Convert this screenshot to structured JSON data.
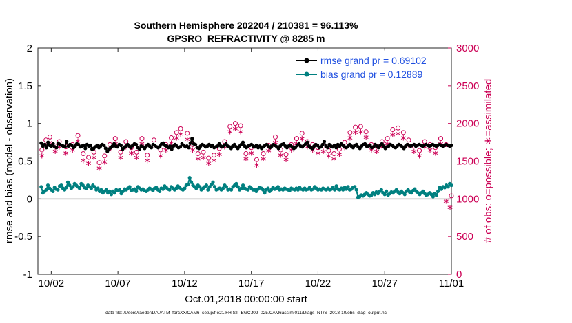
{
  "chart_data": {
    "type": "line",
    "title_line1": "Southern Hemisphere 202204 / 210381 = 96.113%",
    "title_line2": "GPSRO_REFRACTIVITY @ 8285 m",
    "xlabel": "Oct.01,2018 00:00:00 start",
    "ylabel_left": "rmse and bias (model - observation)",
    "ylabel_right": "# of obs: o=possible; ∗=assimilated",
    "x_tick_labels": [
      "10/02",
      "10/07",
      "10/12",
      "10/17",
      "10/22",
      "10/27",
      "11/01"
    ],
    "x_tick_days": [
      1,
      6,
      11,
      16,
      21,
      26,
      31
    ],
    "xlim_days": [
      0,
      31
    ],
    "ylim_left": [
      -1,
      2
    ],
    "y_ticks_left": [
      "-1",
      "-0.5",
      "0",
      "0.5",
      "1",
      "1.5",
      "2"
    ],
    "ylim_right": [
      0,
      3000
    ],
    "y_ticks_right": [
      "0",
      "500",
      "1000",
      "1500",
      "2000",
      "2500",
      "3000"
    ],
    "legend_position": "top-right",
    "footnote": "data file: /Users/raeder/DAI/ATM_forcXX/CAM6_setup/f.e21.FHIST_BGC.f09_025.CAM6assim.011/Diags_NTrS_2018-10/obs_diag_output.nc",
    "colors": {
      "rmse": "#000000",
      "bias": "#008080",
      "obs": "#cc0055",
      "zero_line": "#aaaaaa"
    },
    "series": [
      {
        "name": "rmse grand pr = 0.69102",
        "key": "rmse",
        "time_range": [
          0.25,
          31
        ],
        "values": [
          0.74,
          0.7,
          0.72,
          0.68,
          0.75,
          0.71,
          0.7,
          0.73,
          0.69,
          0.68,
          0.74,
          0.72,
          0.71,
          0.7,
          0.69,
          0.76,
          0.7,
          0.72,
          0.71,
          0.68,
          0.7,
          0.73,
          0.72,
          0.69,
          0.7,
          0.71,
          0.67,
          0.72,
          0.7,
          0.71,
          0.66,
          0.67,
          0.69,
          0.71,
          0.68,
          0.7,
          0.72,
          0.71,
          0.67,
          0.63,
          0.66,
          0.68,
          0.7,
          0.73,
          0.7,
          0.69,
          0.72,
          0.71,
          0.66,
          0.68,
          0.7,
          0.72,
          0.7,
          0.68,
          0.71,
          0.73,
          0.72,
          0.68,
          0.66,
          0.7,
          0.69,
          0.67,
          0.7,
          0.72,
          0.7,
          0.68,
          0.72,
          0.71,
          0.69,
          0.68,
          0.7,
          0.73,
          0.74,
          0.71,
          0.7,
          0.68,
          0.7,
          0.66,
          0.7,
          0.72,
          0.7,
          0.68,
          0.69,
          0.73,
          0.71,
          0.69,
          0.7,
          0.68,
          0.74,
          0.8,
          0.73,
          0.72,
          0.68,
          0.67,
          0.7,
          0.72,
          0.71,
          0.69,
          0.7,
          0.72,
          0.7,
          0.71,
          0.68,
          0.69,
          0.7,
          0.73,
          0.7,
          0.69,
          0.71,
          0.73,
          0.7,
          0.69,
          0.67,
          0.7,
          0.72,
          0.69,
          0.67,
          0.7,
          0.72,
          0.75,
          0.7,
          0.68,
          0.7,
          0.71,
          0.72,
          0.7,
          0.69,
          0.71,
          0.68,
          0.7,
          0.67,
          0.69,
          0.71,
          0.72,
          0.7,
          0.68,
          0.7,
          0.72,
          0.71,
          0.69,
          0.67,
          0.7,
          0.72,
          0.73,
          0.7,
          0.68,
          0.7,
          0.71,
          0.69,
          0.67,
          0.68,
          0.71,
          0.73,
          0.7,
          0.69,
          0.71,
          0.73,
          0.75,
          0.7,
          0.68,
          0.67,
          0.7,
          0.72,
          0.71,
          0.68,
          0.69,
          0.72,
          0.76,
          0.7,
          0.68,
          0.72,
          0.7,
          0.69,
          0.71,
          0.68,
          0.72,
          0.7,
          0.73,
          0.71,
          0.69,
          0.68,
          0.7,
          0.72,
          0.7,
          0.68,
          0.71,
          0.72,
          0.69,
          0.67,
          0.7,
          0.72,
          0.73,
          0.7,
          0.7,
          0.71,
          0.68,
          0.69,
          0.72,
          0.7,
          0.68,
          0.71,
          0.73,
          0.7,
          0.67,
          0.69,
          0.7,
          0.72,
          0.71,
          0.69,
          0.68,
          0.7,
          0.72,
          0.71,
          0.69,
          0.67,
          0.7,
          0.72,
          0.71,
          0.7,
          0.71,
          0.72,
          0.7,
          0.71,
          0.72,
          0.71,
          0.7,
          0.71,
          0.72,
          0.71,
          0.7,
          0.71,
          0.72,
          0.71,
          0.7,
          0.71,
          0.72,
          0.71,
          0.7,
          0.71,
          0.72,
          0.71,
          0.7,
          0.71
        ]
      },
      {
        "name": "bias grand pr = 0.12889",
        "key": "bias",
        "time_range": [
          0.25,
          31
        ],
        "values": [
          0.16,
          0.08,
          0.1,
          0.12,
          0.18,
          0.14,
          0.12,
          0.1,
          0.15,
          0.13,
          0.12,
          0.17,
          0.18,
          0.14,
          0.12,
          0.15,
          0.22,
          0.18,
          0.14,
          0.16,
          0.2,
          0.18,
          0.16,
          0.14,
          0.2,
          0.18,
          0.15,
          0.14,
          0.18,
          0.16,
          0.14,
          0.18,
          0.16,
          0.12,
          0.14,
          0.1,
          0.12,
          0.08,
          0.1,
          0.12,
          0.08,
          0.1,
          0.06,
          0.1,
          0.08,
          0.12,
          0.11,
          0.12,
          0.07,
          0.1,
          0.13,
          0.12,
          0.14,
          0.16,
          0.11,
          0.12,
          0.13,
          0.1,
          0.16,
          0.14,
          0.12,
          0.13,
          0.11,
          0.1,
          0.12,
          0.14,
          0.13,
          0.11,
          0.14,
          0.15,
          0.12,
          0.1,
          0.14,
          0.13,
          0.17,
          0.15,
          0.13,
          0.12,
          0.16,
          0.14,
          0.12,
          0.14,
          0.17,
          0.15,
          0.13,
          0.12,
          0.14,
          0.18,
          0.19,
          0.28,
          0.22,
          0.18,
          0.16,
          0.14,
          0.18,
          0.16,
          0.12,
          0.14,
          0.16,
          0.18,
          0.12,
          0.16,
          0.19,
          0.22,
          0.16,
          0.12,
          0.13,
          0.14,
          0.12,
          0.14,
          0.18,
          0.16,
          0.12,
          0.13,
          0.12,
          0.16,
          0.18,
          0.2,
          0.16,
          0.12,
          0.14,
          0.18,
          0.14,
          0.13,
          0.12,
          0.16,
          0.14,
          0.12,
          0.12,
          0.1,
          0.13,
          0.15,
          0.14,
          0.12,
          0.08,
          0.12,
          0.14,
          0.1,
          0.12,
          0.15,
          0.13,
          0.14,
          0.16,
          0.12,
          0.13,
          0.12,
          0.14,
          0.13,
          0.12,
          0.11,
          0.14,
          0.13,
          0.12,
          0.14,
          0.12,
          0.15,
          0.13,
          0.12,
          0.14,
          0.12,
          0.13,
          0.15,
          0.12,
          0.13,
          0.16,
          0.14,
          0.12,
          0.13,
          0.12,
          0.14,
          0.13,
          0.12,
          0.14,
          0.12,
          0.13,
          0.15,
          0.12,
          0.17,
          0.13,
          0.12,
          0.14,
          0.12,
          0.15,
          0.13,
          0.16,
          0.12,
          0.13,
          0.15,
          0.16,
          0.12,
          0.02,
          0.03,
          0.05,
          0.04,
          0.06,
          0.08,
          0.06,
          0.04,
          0.05,
          0.08,
          0.06,
          0.09,
          0.07,
          0.1,
          0.12,
          0.08,
          0.06,
          0.1,
          0.05,
          0.07,
          0.09,
          0.08,
          0.1,
          0.12,
          0.09,
          0.07,
          0.1,
          0.08,
          0.06,
          0.1,
          0.12,
          0.09,
          0.08,
          0.11,
          0.13,
          0.1,
          0.08,
          0.06,
          0.08,
          0.1,
          0.07,
          0.05,
          0.06,
          0.08,
          0.06,
          0.03,
          0.07,
          0.05,
          0.1,
          0.15,
          0.13,
          0.16,
          0.15,
          0.18,
          0.16,
          0.2,
          0.18
        ]
      }
    ],
    "obs_possible": [
      [
        0.3,
        1650
      ],
      [
        0.6,
        1780
      ],
      [
        0.9,
        1820
      ],
      [
        1.3,
        1700
      ],
      [
        1.6,
        1760
      ],
      [
        2.1,
        1690
      ],
      [
        2.6,
        1720
      ],
      [
        3.0,
        1840
      ],
      [
        3.4,
        1600
      ],
      [
        3.8,
        1550
      ],
      [
        4.2,
        1620
      ],
      [
        4.6,
        1480
      ],
      [
        5.0,
        1570
      ],
      [
        5.4,
        1720
      ],
      [
        5.8,
        1800
      ],
      [
        6.2,
        1620
      ],
      [
        6.6,
        1760
      ],
      [
        7.0,
        1680
      ],
      [
        7.4,
        1620
      ],
      [
        7.8,
        1800
      ],
      [
        8.2,
        1580
      ],
      [
        8.7,
        1780
      ],
      [
        9.2,
        1650
      ],
      [
        9.6,
        1720
      ],
      [
        10.0,
        1810
      ],
      [
        10.4,
        1880
      ],
      [
        10.7,
        1930
      ],
      [
        11.2,
        1870
      ],
      [
        11.6,
        1720
      ],
      [
        12.0,
        1600
      ],
      [
        12.4,
        1620
      ],
      [
        12.8,
        1540
      ],
      [
        13.2,
        1580
      ],
      [
        13.6,
        1670
      ],
      [
        14.0,
        1760
      ],
      [
        14.4,
        1960
      ],
      [
        14.8,
        2000
      ],
      [
        15.2,
        1970
      ],
      [
        15.6,
        1600
      ],
      [
        16.0,
        1680
      ],
      [
        16.4,
        1520
      ],
      [
        16.9,
        1600
      ],
      [
        17.3,
        1710
      ],
      [
        17.8,
        1820
      ],
      [
        18.2,
        1650
      ],
      [
        18.6,
        1590
      ],
      [
        19.0,
        1720
      ],
      [
        19.4,
        1800
      ],
      [
        19.8,
        1870
      ],
      [
        20.2,
        1760
      ],
      [
        20.6,
        1720
      ],
      [
        21.0,
        1680
      ],
      [
        21.4,
        1700
      ],
      [
        21.8,
        1640
      ],
      [
        22.2,
        1600
      ],
      [
        22.6,
        1660
      ],
      [
        23.0,
        1750
      ],
      [
        23.4,
        1880
      ],
      [
        23.8,
        1950
      ],
      [
        24.2,
        1960
      ],
      [
        24.6,
        1890
      ],
      [
        25.0,
        1720
      ],
      [
        25.4,
        1700
      ],
      [
        25.8,
        1760
      ],
      [
        26.2,
        1800
      ],
      [
        26.6,
        1920
      ],
      [
        27.0,
        1940
      ],
      [
        27.4,
        1880
      ],
      [
        27.8,
        1780
      ],
      [
        28.2,
        1700
      ],
      [
        28.6,
        1640
      ],
      [
        29.0,
        1760
      ],
      [
        29.4,
        1720
      ],
      [
        29.8,
        1680
      ],
      [
        30.2,
        1800
      ],
      [
        30.6,
        1720
      ],
      [
        31.0,
        1040
      ]
    ],
    "obs_assimilated": [
      [
        0.3,
        1580
      ],
      [
        0.6,
        1720
      ],
      [
        0.9,
        1760
      ],
      [
        1.3,
        1640
      ],
      [
        1.6,
        1700
      ],
      [
        2.1,
        1620
      ],
      [
        2.6,
        1660
      ],
      [
        3.0,
        1780
      ],
      [
        3.4,
        1520
      ],
      [
        3.8,
        1480
      ],
      [
        4.2,
        1560
      ],
      [
        4.6,
        1420
      ],
      [
        5.0,
        1500
      ],
      [
        5.4,
        1660
      ],
      [
        5.8,
        1740
      ],
      [
        6.2,
        1560
      ],
      [
        6.6,
        1700
      ],
      [
        7.0,
        1620
      ],
      [
        7.4,
        1560
      ],
      [
        7.8,
        1740
      ],
      [
        8.2,
        1520
      ],
      [
        8.7,
        1720
      ],
      [
        9.2,
        1580
      ],
      [
        9.6,
        1660
      ],
      [
        10.0,
        1750
      ],
      [
        10.4,
        1820
      ],
      [
        10.7,
        1870
      ],
      [
        11.2,
        1800
      ],
      [
        11.6,
        1660
      ],
      [
        12.0,
        1540
      ],
      [
        12.4,
        1560
      ],
      [
        12.8,
        1480
      ],
      [
        13.2,
        1520
      ],
      [
        13.6,
        1600
      ],
      [
        14.0,
        1700
      ],
      [
        14.4,
        1900
      ],
      [
        14.8,
        1940
      ],
      [
        15.2,
        1900
      ],
      [
        15.6,
        1540
      ],
      [
        16.0,
        1620
      ],
      [
        16.4,
        1460
      ],
      [
        16.9,
        1540
      ],
      [
        17.3,
        1650
      ],
      [
        17.8,
        1760
      ],
      [
        18.2,
        1590
      ],
      [
        18.6,
        1530
      ],
      [
        19.0,
        1660
      ],
      [
        19.4,
        1740
      ],
      [
        19.8,
        1810
      ],
      [
        20.2,
        1700
      ],
      [
        20.6,
        1660
      ],
      [
        21.0,
        1620
      ],
      [
        21.4,
        1640
      ],
      [
        21.8,
        1580
      ],
      [
        22.2,
        1540
      ],
      [
        22.6,
        1600
      ],
      [
        23.0,
        1690
      ],
      [
        23.4,
        1820
      ],
      [
        23.8,
        1890
      ],
      [
        24.2,
        1900
      ],
      [
        24.6,
        1830
      ],
      [
        25.0,
        1660
      ],
      [
        25.4,
        1640
      ],
      [
        25.8,
        1700
      ],
      [
        26.2,
        1740
      ],
      [
        26.6,
        1860
      ],
      [
        27.0,
        1880
      ],
      [
        27.4,
        1820
      ],
      [
        27.8,
        1720
      ],
      [
        28.2,
        1640
      ],
      [
        28.6,
        1580
      ],
      [
        29.0,
        1700
      ],
      [
        29.4,
        1660
      ],
      [
        29.8,
        1620
      ],
      [
        30.2,
        1740
      ],
      [
        30.6,
        980
      ],
      [
        30.9,
        900
      ]
    ]
  }
}
